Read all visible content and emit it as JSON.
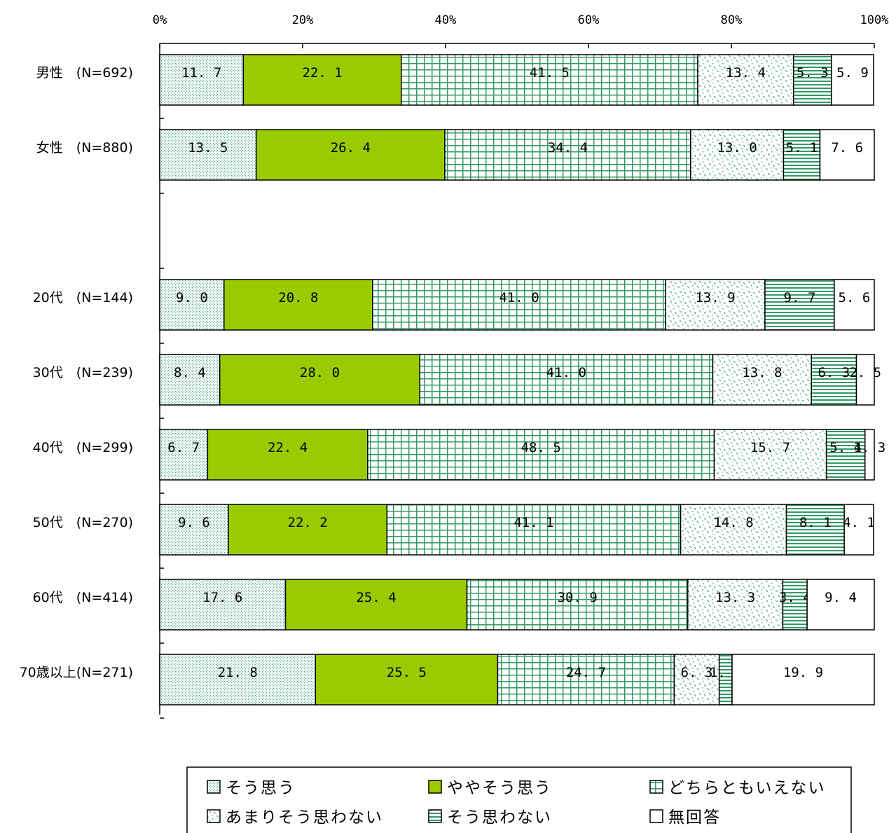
{
  "chart_data": {
    "type": "bar",
    "orientation": "horizontal",
    "stacked": true,
    "percent": true,
    "xlim": [
      0,
      100
    ],
    "x_ticks": [
      "0%",
      "20%",
      "40%",
      "60%",
      "80%",
      "100%"
    ],
    "categories": [
      "男性　(N=692)",
      "女性　(N=880)",
      "",
      "20代　(N=144)",
      "30代　(N=239)",
      "40代　(N=299)",
      "50代　(N=270)",
      "60代　(N=414)",
      "70歳以上(N=271)"
    ],
    "series": [
      {
        "name": "そう思う",
        "color": "#d8ece4",
        "pattern": "dots",
        "values": [
          11.7,
          13.5,
          null,
          9.0,
          8.4,
          6.7,
          9.6,
          17.6,
          21.8
        ],
        "labels": [
          "11.7",
          "13.5",
          "",
          "9.0",
          "8.4",
          "6.7",
          "9.6",
          "17.6",
          "21.8"
        ]
      },
      {
        "name": "ややそう思う",
        "color": "#99cc00",
        "pattern": "solid",
        "values": [
          22.1,
          26.4,
          null,
          20.8,
          28.0,
          22.4,
          22.2,
          25.4,
          25.5
        ],
        "labels": [
          "22.1",
          "26.4",
          "",
          "20.8",
          "28.0",
          "22.4",
          "22.2",
          "25.4",
          "25.5"
        ]
      },
      {
        "name": "どちらともいえない",
        "color": "#339966",
        "pattern": "grid",
        "values": [
          41.5,
          34.4,
          null,
          41.0,
          41.0,
          48.5,
          41.1,
          30.9,
          24.7
        ],
        "labels": [
          "41.5",
          "34.4",
          "",
          "41.0",
          "41.0",
          "48.5",
          "41.1",
          "30.9",
          "24.7"
        ]
      },
      {
        "name": "あまりそう思わない",
        "color": "#55aa88",
        "pattern": "scatter",
        "values": [
          13.4,
          13.0,
          null,
          13.9,
          13.8,
          15.7,
          14.8,
          13.3,
          6.3
        ],
        "labels": [
          "13.4",
          "13.0",
          "",
          "13.9",
          "13.8",
          "15.7",
          "14.8",
          "13.3",
          "6.3"
        ]
      },
      {
        "name": "そう思わない",
        "color": "#339966",
        "pattern": "hlines",
        "values": [
          5.3,
          5.1,
          null,
          9.7,
          6.3,
          5.4,
          8.1,
          3.4,
          1.8
        ],
        "labels": [
          "5.3",
          "5.1",
          "",
          "9.7",
          "6.3",
          "5.4",
          "8.1",
          "3.4",
          "1.8"
        ]
      },
      {
        "name": "無回答",
        "color": "#ffffff",
        "pattern": "none",
        "values": [
          5.9,
          7.6,
          null,
          5.6,
          2.5,
          1.3,
          4.1,
          9.4,
          19.9
        ],
        "labels": [
          "5.9",
          "7.6",
          "",
          "5.6",
          "2.5",
          "1.3",
          "4.1",
          "9.4",
          "19.9"
        ]
      }
    ],
    "legend": {
      "placement": "bottom",
      "columns": 3
    }
  }
}
